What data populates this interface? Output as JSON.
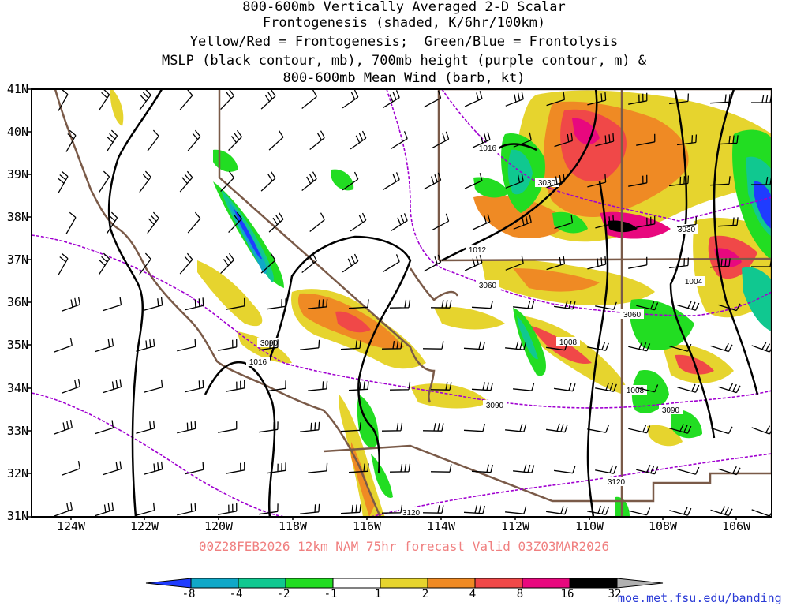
{
  "title": {
    "lines": [
      "800-600mb Vertically Averaged 2-D Scalar",
      "Frontogenesis (shaded, K/6hr/100km)",
      "Yellow/Red = Frontogenesis;  Green/Blue = Frontolysis",
      "MSLP (black contour, mb), 700mb height (purple contour, m) &",
      "800-600mb Mean Wind (barb, kt)"
    ]
  },
  "axes": {
    "lat_labels": [
      "41N",
      "40N",
      "39N",
      "38N",
      "37N",
      "36N",
      "35N",
      "34N",
      "33N",
      "32N",
      "31N"
    ],
    "lon_labels": [
      "124W",
      "122W",
      "120W",
      "118W",
      "116W",
      "114W",
      "112W",
      "110W",
      "108W",
      "106W"
    ]
  },
  "contour_labels": {
    "mslp": [
      "1016",
      "1016",
      "1012",
      "1008",
      "1008",
      "1004"
    ],
    "height": [
      "3030",
      "3030",
      "3060",
      "3060",
      "3090",
      "3090",
      "3090",
      "3120",
      "3120"
    ]
  },
  "valid_text": "00Z28FEB2026 12km NAM 75hr forecast Valid 03Z03MAR2026",
  "colorbar": {
    "labels": [
      "-8",
      "-4",
      "-2",
      "-1",
      "1",
      "2",
      "4",
      "8",
      "16",
      "32"
    ],
    "colors": [
      "#1f3cff",
      "#10a8c8",
      "#10c890",
      "#22dd22",
      "#ffffff",
      "#e6d42e",
      "#ef8a24",
      "#f04848",
      "#e8087e",
      "#000000",
      "#b0b0b0"
    ]
  },
  "colors": {
    "mslp": "#000000",
    "height": "#a000d0",
    "border": "#7a5a48",
    "wind_barb": "#000000"
  },
  "credit": "moe.met.fsu.edu/banding"
}
